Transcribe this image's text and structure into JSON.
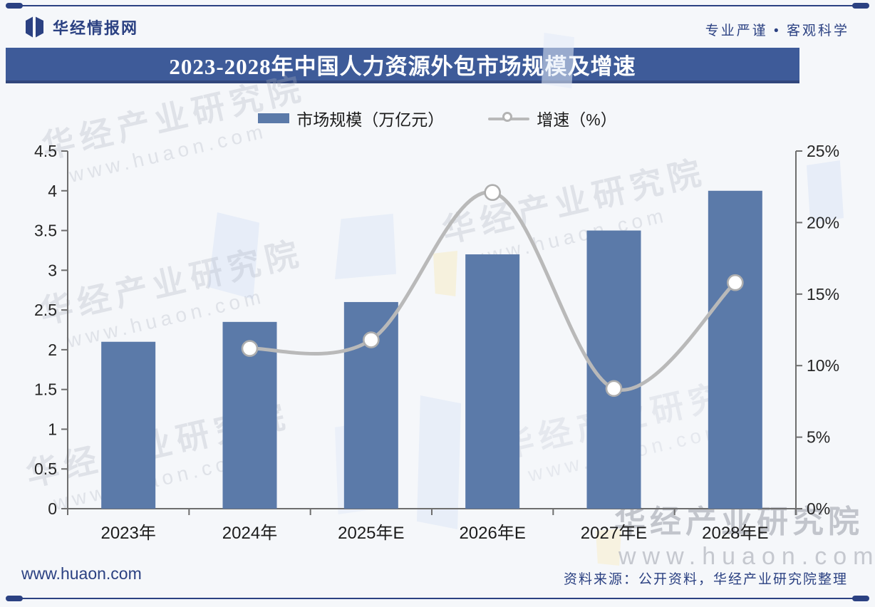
{
  "header": {
    "brand": "华经情报网",
    "slogan": "专业严谨 • 客观科学"
  },
  "title": "2023-2028年中国人力资源外包市场规模及增速",
  "chart_data": {
    "type": "bar+line",
    "title": "2023-2028年中国人力资源外包市场规模及增速",
    "categories": [
      "2023年",
      "2024年",
      "2025年E",
      "2026年E",
      "2027年E",
      "2028年E"
    ],
    "series": [
      {
        "name": "市场规模（万亿元）",
        "type": "bar",
        "axis": "left",
        "color": "#5b7aa9",
        "values": [
          2.1,
          2.35,
          2.6,
          3.2,
          3.5,
          4.0
        ]
      },
      {
        "name": "增速（%）",
        "type": "line",
        "axis": "right",
        "color": "#b9b9b9",
        "marker": "open-circle",
        "values": [
          null,
          11.2,
          11.8,
          22.1,
          8.4,
          15.8
        ]
      }
    ],
    "left_axis": {
      "min": 0,
      "max": 4.5,
      "tick_values": [
        0,
        0.5,
        1,
        1.5,
        2,
        2.5,
        3,
        3.5,
        4,
        4.5
      ],
      "tick_labels": [
        "0",
        "0.5",
        "1",
        "1.5",
        "2",
        "2.5",
        "3",
        "3.5",
        "4",
        "4.5"
      ]
    },
    "right_axis": {
      "min": 0,
      "max": 25,
      "tick_values": [
        0,
        5,
        10,
        15,
        20,
        25
      ],
      "tick_labels": [
        "0%",
        "5%",
        "10%",
        "15%",
        "20%",
        "25%"
      ]
    },
    "grid": false,
    "legend_position": "top"
  },
  "watermark": {
    "name": "华经产业研究院",
    "url": "www.huaon.com"
  },
  "footer": {
    "site": "www.huaon.com",
    "source": "资料来源：公开资料，华经产业研究院整理"
  },
  "colors": {
    "navy": "#2b4182",
    "banner": "#3e5b99",
    "bar": "#5b7aa9",
    "line": "#b9b9b9",
    "page_bg": "#f5f7fa"
  }
}
